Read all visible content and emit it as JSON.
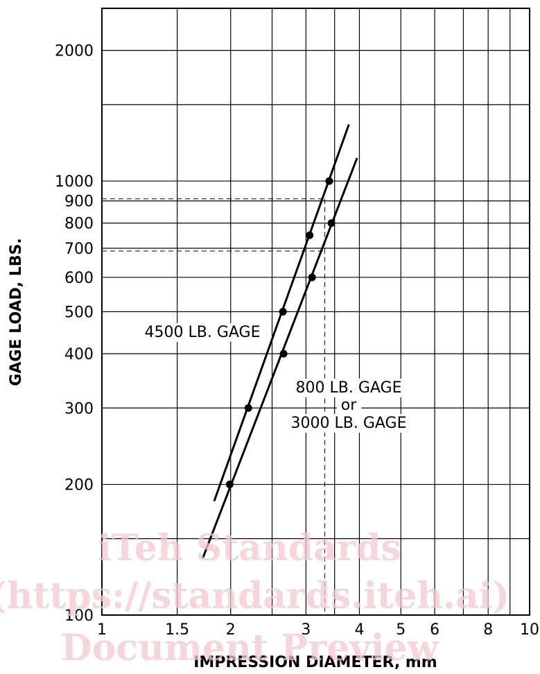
{
  "chart_data": {
    "type": "line",
    "title": "",
    "xlabel": "IMPRESSION DIAMETER, mm",
    "ylabel": "GAGE LOAD, LBS.",
    "x_scale": "log",
    "y_scale": "log",
    "xlim": [
      1,
      10
    ],
    "ylim": [
      100,
      2500
    ],
    "grid": true,
    "x_gridlines": [
      1,
      1.5,
      2,
      2.5,
      3,
      3.5,
      4,
      5,
      6,
      7,
      8,
      9,
      10
    ],
    "y_gridlines": [
      100,
      150,
      200,
      300,
      400,
      500,
      600,
      700,
      800,
      900,
      1000,
      1500,
      2000
    ],
    "x_ticks": [
      {
        "value": 1,
        "label": "1"
      },
      {
        "value": 1.5,
        "label": "1.5"
      },
      {
        "value": 2,
        "label": "2"
      },
      {
        "value": 3,
        "label": "3"
      },
      {
        "value": 4,
        "label": "4"
      },
      {
        "value": 5,
        "label": "5"
      },
      {
        "value": 6,
        "label": "6"
      },
      {
        "value": 8,
        "label": "8"
      },
      {
        "value": 10,
        "label": "10"
      }
    ],
    "y_ticks": [
      {
        "value": 100,
        "label": "100"
      },
      {
        "value": 200,
        "label": "200"
      },
      {
        "value": 300,
        "label": "300"
      },
      {
        "value": 400,
        "label": "400"
      },
      {
        "value": 500,
        "label": "500"
      },
      {
        "value": 600,
        "label": "600"
      },
      {
        "value": 700,
        "label": "700"
      },
      {
        "value": 800,
        "label": "800"
      },
      {
        "value": 900,
        "label": "900"
      },
      {
        "value": 1000,
        "label": "1000"
      },
      {
        "value": 2000,
        "label": "2000"
      }
    ],
    "series": [
      {
        "name": "4500 LB. GAGE",
        "line": {
          "x": [
            1.83,
            3.78
          ],
          "y": [
            183,
            1350
          ]
        },
        "points": {
          "x": [
            2.2,
            2.65,
            3.06,
            3.4
          ],
          "y": [
            300,
            500,
            750,
            1000
          ]
        }
      },
      {
        "name": "800 LB. GAGE or 3000 LB. GAGE",
        "line": {
          "x": [
            1.72,
            3.95
          ],
          "y": [
            135,
            1130
          ]
        },
        "points": {
          "x": [
            1.99,
            2.66,
            3.1,
            3.44
          ],
          "y": [
            200,
            400,
            600,
            800
          ]
        }
      }
    ],
    "reference_lines": [
      {
        "y": 910,
        "x_end": 3.32
      },
      {
        "y": 690,
        "x_end": 3.32
      },
      {
        "x": 3.32,
        "y_end": 910
      }
    ],
    "annotations": [
      {
        "text": "4500 LB. GAGE",
        "series": 0
      },
      {
        "text": "800 LB. GAGE",
        "series": 1
      },
      {
        "text": "or",
        "series": 1
      },
      {
        "text": "3000 LB. GAGE",
        "series": 1
      }
    ],
    "watermark": [
      "iTeh Standards",
      "(https://standards.iteh.ai)",
      "Document Preview"
    ]
  }
}
